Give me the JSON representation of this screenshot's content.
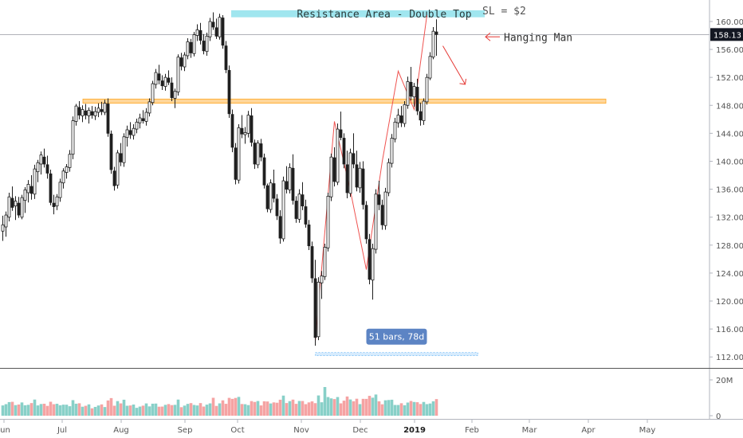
{
  "chart_data": {
    "type": "candlestick",
    "price_axis": {
      "ticks": [
        160,
        156,
        152,
        148,
        144,
        140,
        136,
        132,
        128,
        124,
        120,
        116,
        112
      ],
      "ylim": [
        111.0,
        162.5
      ]
    },
    "volume_axis": {
      "ticks": [
        {
          "value": 20,
          "label": "20M"
        },
        {
          "value": 0,
          "label": "0"
        }
      ],
      "ylim": [
        0,
        24
      ]
    },
    "x_axis": {
      "labels": [
        "Jun",
        "Jul",
        "Aug",
        "Sep",
        "Oct",
        "Nov",
        "Dec",
        "2019",
        "Feb",
        "Mar",
        "Apr",
        "May"
      ],
      "bold_label": "2019"
    },
    "last_price": {
      "value": 158.13,
      "label": "158.13"
    },
    "bars": [
      [
        130.0,
        132.2,
        128.6,
        130.9
      ],
      [
        130.6,
        132.8,
        129.2,
        132.3
      ],
      [
        132.0,
        135.5,
        131.4,
        134.9
      ],
      [
        134.7,
        136.4,
        132.9,
        133.4
      ],
      [
        133.6,
        135.0,
        131.6,
        134.3
      ],
      [
        134.0,
        134.9,
        131.9,
        132.3
      ],
      [
        132.0,
        135.2,
        131.7,
        134.8
      ],
      [
        134.4,
        136.3,
        132.6,
        135.9
      ],
      [
        135.5,
        137.3,
        134.1,
        136.7
      ],
      [
        136.4,
        138.0,
        134.5,
        135.4
      ],
      [
        135.3,
        139.5,
        134.6,
        138.9
      ],
      [
        138.5,
        140.2,
        137.0,
        139.8
      ],
      [
        139.6,
        141.4,
        138.1,
        140.9
      ],
      [
        140.6,
        141.8,
        139.1,
        139.6
      ],
      [
        139.5,
        140.8,
        137.5,
        138.3
      ],
      [
        138.2,
        138.8,
        133.7,
        134.1
      ],
      [
        134.0,
        135.2,
        132.4,
        133.5
      ],
      [
        133.6,
        135.3,
        133.0,
        134.9
      ],
      [
        134.8,
        137.5,
        134.2,
        137.0
      ],
      [
        136.9,
        139.0,
        136.1,
        138.6
      ],
      [
        138.4,
        139.6,
        137.5,
        139.2
      ],
      [
        139.1,
        141.6,
        138.5,
        141.0
      ],
      [
        141.0,
        146.4,
        140.3,
        145.8
      ],
      [
        145.7,
        148.2,
        145.1,
        147.9
      ],
      [
        147.7,
        148.6,
        146.0,
        146.6
      ],
      [
        146.5,
        148.0,
        145.6,
        147.4
      ],
      [
        147.2,
        148.2,
        146.0,
        146.6
      ],
      [
        146.5,
        147.7,
        145.4,
        147.3
      ],
      [
        147.1,
        147.9,
        146.1,
        146.6
      ],
      [
        146.5,
        147.8,
        145.9,
        147.1
      ],
      [
        147.0,
        148.3,
        146.3,
        147.6
      ],
      [
        147.4,
        148.5,
        146.6,
        147.1
      ],
      [
        147.0,
        148.8,
        146.6,
        148.3
      ],
      [
        148.2,
        149.0,
        143.5,
        144.0
      ],
      [
        143.9,
        144.4,
        138.2,
        138.8
      ],
      [
        138.6,
        139.2,
        135.8,
        136.5
      ],
      [
        136.6,
        141.6,
        136.1,
        141.2
      ],
      [
        141.1,
        142.6,
        139.3,
        139.9
      ],
      [
        139.8,
        144.0,
        139.2,
        143.5
      ],
      [
        143.4,
        145.1,
        142.1,
        144.5
      ],
      [
        144.4,
        145.6,
        143.2,
        143.8
      ],
      [
        143.7,
        145.3,
        143.1,
        144.7
      ],
      [
        144.6,
        146.1,
        144.0,
        145.6
      ],
      [
        145.5,
        146.8,
        144.7,
        146.2
      ],
      [
        146.1,
        147.3,
        145.4,
        145.8
      ],
      [
        145.7,
        147.6,
        145.1,
        147.0
      ],
      [
        146.9,
        149.0,
        146.4,
        148.5
      ],
      [
        148.4,
        151.5,
        148.0,
        151.1
      ],
      [
        151.0,
        153.2,
        150.4,
        152.7
      ],
      [
        152.5,
        153.8,
        151.0,
        151.6
      ],
      [
        151.5,
        152.3,
        150.2,
        150.8
      ],
      [
        150.7,
        152.5,
        150.1,
        152.0
      ],
      [
        151.9,
        153.0,
        150.9,
        151.3
      ],
      [
        151.2,
        152.0,
        148.6,
        149.1
      ],
      [
        149.0,
        150.4,
        147.6,
        150.0
      ],
      [
        149.9,
        155.3,
        149.4,
        154.9
      ],
      [
        154.8,
        155.5,
        153.0,
        153.6
      ],
      [
        153.5,
        155.6,
        152.9,
        155.2
      ],
      [
        155.1,
        157.6,
        154.6,
        157.1
      ],
      [
        157.0,
        157.5,
        154.8,
        155.5
      ],
      [
        155.4,
        158.5,
        155.0,
        158.1
      ],
      [
        158.0,
        159.6,
        157.2,
        158.8
      ],
      [
        158.7,
        159.8,
        156.7,
        157.3
      ],
      [
        157.2,
        158.2,
        155.3,
        155.8
      ],
      [
        155.7,
        158.4,
        155.1,
        157.9
      ],
      [
        157.8,
        160.5,
        157.2,
        160.0
      ],
      [
        159.9,
        161.3,
        158.8,
        159.2
      ],
      [
        159.1,
        160.4,
        157.5,
        157.9
      ],
      [
        157.8,
        161.1,
        157.4,
        160.6
      ],
      [
        160.5,
        160.9,
        156.1,
        156.6
      ],
      [
        156.5,
        157.2,
        152.6,
        153.1
      ],
      [
        153.0,
        153.7,
        146.2,
        146.8
      ],
      [
        146.7,
        147.4,
        141.3,
        142.0
      ],
      [
        141.9,
        142.6,
        136.7,
        137.4
      ],
      [
        137.3,
        145.3,
        136.8,
        144.8
      ],
      [
        144.7,
        146.6,
        143.3,
        143.9
      ],
      [
        143.8,
        144.9,
        142.5,
        144.1
      ],
      [
        144.0,
        147.2,
        143.4,
        146.6
      ],
      [
        146.5,
        147.6,
        142.1,
        142.7
      ],
      [
        142.6,
        143.1,
        138.9,
        139.6
      ],
      [
        139.5,
        143.0,
        139.0,
        142.6
      ],
      [
        142.5,
        143.2,
        140.0,
        140.6
      ],
      [
        140.5,
        141.1,
        136.1,
        136.6
      ],
      [
        136.5,
        136.8,
        132.7,
        133.2
      ],
      [
        133.1,
        137.4,
        132.6,
        136.9
      ],
      [
        136.8,
        138.8,
        134.1,
        134.7
      ],
      [
        134.6,
        135.3,
        131.6,
        132.2
      ],
      [
        132.1,
        133.0,
        128.2,
        129.0
      ],
      [
        128.9,
        137.8,
        128.5,
        137.2
      ],
      [
        137.1,
        139.3,
        135.4,
        136.0
      ],
      [
        135.9,
        139.7,
        135.4,
        139.1
      ],
      [
        139.0,
        141.0,
        133.8,
        134.4
      ],
      [
        134.3,
        135.0,
        131.2,
        131.8
      ],
      [
        131.7,
        136.0,
        131.2,
        135.3
      ],
      [
        135.2,
        137.0,
        133.0,
        133.6
      ],
      [
        133.5,
        134.5,
        130.5,
        131.0
      ],
      [
        130.9,
        131.6,
        127.3,
        127.9
      ],
      [
        127.8,
        128.5,
        122.6,
        123.3
      ],
      [
        123.2,
        125.9,
        113.6,
        114.8
      ],
      [
        114.9,
        123.4,
        114.4,
        122.7
      ],
      [
        122.6,
        124.3,
        120.3,
        123.6
      ],
      [
        123.5,
        128.2,
        123.0,
        127.7
      ],
      [
        127.6,
        135.5,
        127.1,
        135.0
      ],
      [
        134.9,
        141.1,
        134.3,
        140.6
      ],
      [
        140.5,
        142.0,
        136.4,
        137.1
      ],
      [
        137.0,
        145.4,
        136.6,
        144.6
      ],
      [
        144.5,
        147.1,
        143.0,
        143.4
      ],
      [
        143.3,
        144.0,
        139.0,
        139.6
      ],
      [
        139.5,
        141.5,
        134.7,
        135.5
      ],
      [
        135.4,
        141.8,
        134.9,
        141.2
      ],
      [
        141.1,
        144.0,
        139.0,
        139.6
      ],
      [
        139.5,
        141.5,
        135.7,
        136.3
      ],
      [
        136.2,
        139.9,
        135.5,
        139.0
      ],
      [
        138.9,
        140.0,
        133.1,
        133.8
      ],
      [
        133.7,
        134.3,
        128.2,
        128.9
      ],
      [
        128.8,
        129.6,
        122.4,
        123.1
      ],
      [
        123.0,
        128.2,
        120.2,
        127.5
      ],
      [
        127.4,
        136.0,
        126.8,
        135.3
      ],
      [
        135.2,
        137.2,
        133.0,
        133.8
      ],
      [
        133.7,
        134.5,
        130.2,
        130.9
      ],
      [
        130.8,
        136.2,
        130.2,
        135.6
      ],
      [
        135.5,
        140.4,
        135.0,
        139.8
      ],
      [
        139.7,
        143.9,
        139.1,
        143.3
      ],
      [
        143.2,
        146.2,
        142.7,
        145.6
      ],
      [
        145.5,
        147.5,
        144.8,
        146.6
      ],
      [
        146.5,
        147.9,
        144.9,
        145.5
      ],
      [
        145.4,
        148.6,
        144.9,
        148.1
      ],
      [
        148.0,
        152.1,
        147.5,
        151.4
      ],
      [
        151.3,
        153.5,
        148.7,
        149.3
      ],
      [
        149.2,
        151.2,
        147.8,
        150.7
      ],
      [
        150.6,
        151.8,
        146.6,
        147.2
      ],
      [
        147.1,
        148.4,
        145.1,
        145.9
      ],
      [
        145.8,
        149.0,
        145.2,
        148.6
      ],
      [
        148.5,
        152.5,
        148.1,
        152.0
      ],
      [
        151.9,
        155.6,
        151.6,
        155.0
      ],
      [
        154.9,
        159.2,
        154.6,
        158.6
      ],
      [
        158.5,
        160.3,
        155.1,
        158.13
      ]
    ],
    "volume_up_color": "#88d0c8",
    "volume_down_color": "#f5a3a3",
    "volume_spikes": [
      {
        "bar": 55,
        "value": 9
      },
      {
        "bar": 66,
        "value": 10
      },
      {
        "bar": 97,
        "value": 8
      },
      {
        "bar": 101,
        "value": 16
      },
      {
        "bar": 98,
        "value": 7
      }
    ],
    "zones": [
      {
        "kind": "resistance",
        "label": "Resistance Area - Double Top",
        "y_low": 160.6,
        "y_high": 161.6,
        "color": "#80deea"
      },
      {
        "kind": "support",
        "label": "",
        "y_low": 148.3,
        "y_high": 148.9,
        "color": "#ffcc80"
      }
    ],
    "pattern_polyline": [
      [
        98,
        114.2
      ],
      [
        104,
        145.7
      ],
      [
        109,
        135.8
      ],
      [
        114,
        124.5
      ],
      [
        119,
        140.0
      ],
      [
        124,
        152.9
      ],
      [
        129,
        147.4
      ],
      [
        133,
        160.9
      ]
    ],
    "annotations": {
      "stop_loss": "SL = $2",
      "candle_pattern": "Hanging Man",
      "range_label": "51 bars, 78d"
    },
    "measure": {
      "from_bar": 98,
      "to_bar": 149,
      "price": 112.4
    },
    "projection_arrow": {
      "from": [
        138,
        156.5
      ],
      "to": [
        145,
        151.0
      ]
    },
    "colors": {
      "candle": "#1f1f1f",
      "pattern_line": "#ef5350",
      "axis_text": "#555555",
      "tag_bg": "#5c84c4",
      "last_price_bg": "#131722"
    }
  }
}
